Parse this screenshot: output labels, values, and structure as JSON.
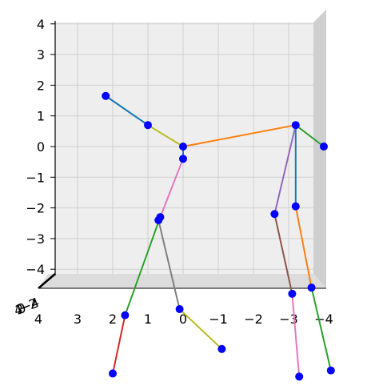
{
  "chart_data": {
    "type": "3d-line-scatter",
    "title": "",
    "view": "front (x–y plane), x axis reversed",
    "grid": true,
    "pane_color": "#eeeeee",
    "xlim": [
      4,
      -4
    ],
    "ylim": [
      -4,
      4
    ],
    "x_ticks": [
      4,
      3,
      2,
      1,
      0,
      -1,
      -2,
      -3,
      -4
    ],
    "x_tick_labels": [
      "4",
      "3",
      "2",
      "1",
      "0",
      "−1",
      "−2",
      "−3",
      "−4"
    ],
    "y_ticks": [
      4,
      3,
      2,
      1,
      0,
      -1,
      -2,
      -3,
      -4
    ],
    "y_tick_labels": [
      "4",
      "3",
      "2",
      "1",
      "0",
      "−1",
      "−2",
      "−3",
      "−4"
    ],
    "z_tick_labels_overlap": [
      "4",
      "2",
      "0",
      "−2",
      "−4"
    ],
    "joint_color": "#0000ff",
    "joints": [
      {
        "id": "pelvis",
        "x": 0.0,
        "y": 0.0
      },
      {
        "id": "spine",
        "x": 0.0,
        "y": -0.4
      },
      {
        "id": "hip-left",
        "x": -3.2,
        "y": 0.7
      },
      {
        "id": "knee-left",
        "x": -3.2,
        "y": -1.95
      },
      {
        "id": "ankle-left",
        "x": -3.65,
        "y": -4.6
      },
      {
        "id": "foot-left",
        "x": -4.2,
        "y": -7.3
      },
      {
        "id": "knee-left-b",
        "x": -2.6,
        "y": -2.2
      },
      {
        "id": "ankle-left-b",
        "x": -3.1,
        "y": -4.8
      },
      {
        "id": "foot-left-b",
        "x": -3.3,
        "y": -7.5
      },
      {
        "id": "toe-left",
        "x": -4.0,
        "y": 0.0
      },
      {
        "id": "hip-right",
        "x": 1.0,
        "y": 0.7
      },
      {
        "id": "hand-right",
        "x": 2.2,
        "y": 1.65
      },
      {
        "id": "chest",
        "x": 0.65,
        "y": -2.3
      },
      {
        "id": "chest-b",
        "x": 0.7,
        "y": -2.4
      },
      {
        "id": "knee-right",
        "x": 1.65,
        "y": -5.5
      },
      {
        "id": "foot-right",
        "x": 2.0,
        "y": -7.4
      },
      {
        "id": "knee-right-b",
        "x": 0.1,
        "y": -5.3
      },
      {
        "id": "foot-right-b",
        "x": -1.1,
        "y": -6.6
      }
    ],
    "bones": [
      {
        "from": "pelvis",
        "to": "hip-right",
        "color": "#bcbd22"
      },
      {
        "from": "hip-right",
        "to": "hand-right",
        "color": "#17becf"
      },
      {
        "from": "hip-right",
        "to": "hand-right",
        "color": "#1f77b4"
      },
      {
        "from": "pelvis",
        "to": "hip-left",
        "color": "#ff7f0e"
      },
      {
        "from": "hip-left",
        "to": "toe-left",
        "color": "#2ca02c"
      },
      {
        "from": "hip-left",
        "to": "knee-left",
        "color": "#1f77b4"
      },
      {
        "from": "hip-left",
        "to": "knee-left-b",
        "color": "#9467bd"
      },
      {
        "from": "knee-left-b",
        "to": "ankle-left-b",
        "color": "#8c564b"
      },
      {
        "from": "ankle-left-b",
        "to": "foot-left-b",
        "color": "#e377c2"
      },
      {
        "from": "knee-left",
        "to": "ankle-left",
        "color": "#ff7f0e"
      },
      {
        "from": "ankle-left",
        "to": "foot-left",
        "color": "#2ca02c"
      },
      {
        "from": "pelvis",
        "to": "spine",
        "color": "#1f77b4"
      },
      {
        "from": "spine",
        "to": "chest",
        "color": "#e377c2"
      },
      {
        "from": "chest",
        "to": "knee-right",
        "color": "#2ca02c"
      },
      {
        "from": "knee-right",
        "to": "foot-right",
        "color": "#d62728"
      },
      {
        "from": "chest-b",
        "to": "knee-right-b",
        "color": "#7f7f7f"
      },
      {
        "from": "knee-right-b",
        "to": "foot-right-b",
        "color": "#bcbd22"
      }
    ]
  }
}
